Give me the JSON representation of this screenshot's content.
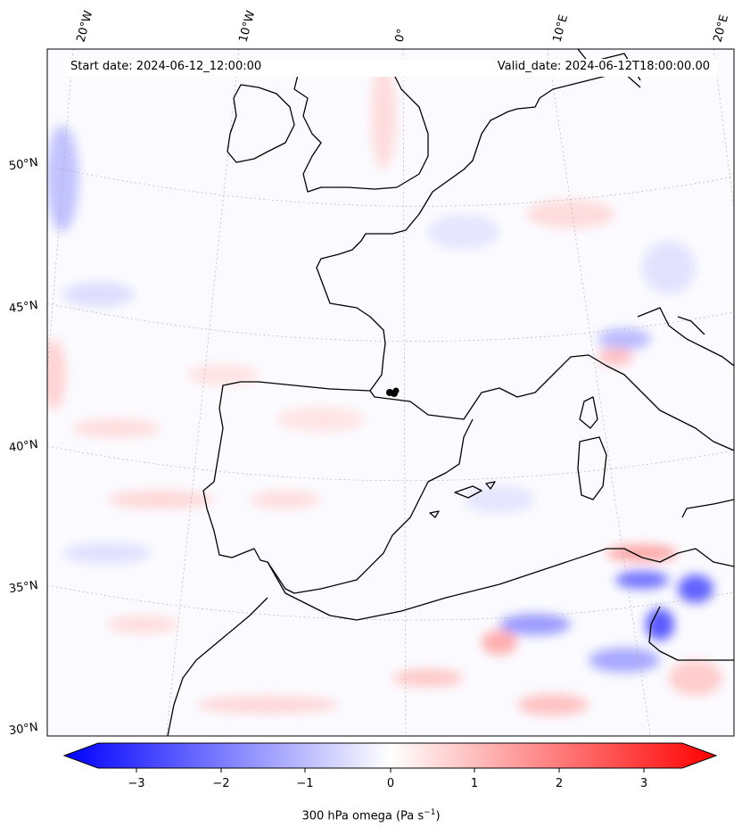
{
  "header": {
    "start_date": "Start date: 2024-06-12_12:00:00",
    "valid_date": "Valid_date: 2024-06-12T18:00:00.00"
  },
  "map": {
    "projection": "lambert-conformal",
    "longitude_labels": [
      "20°W",
      "10°W",
      "0°",
      "10°E",
      "20°E"
    ],
    "latitude_labels": [
      "50°N",
      "45°N",
      "40°N",
      "35°N",
      "30°N"
    ],
    "field": "300 hPa omega",
    "coastline_color": "#000000",
    "gridline_style": "dotted-grey",
    "marker": "black dots near 1°E 42°N"
  },
  "colorbar": {
    "label": "300 hPa omega (Pa s⁻¹)",
    "label_text": "300 hPa omega (Pa s",
    "label_sup": "−1",
    "label_end": ")",
    "ticks": [
      "−3",
      "−2",
      "−1",
      "0",
      "1",
      "2",
      "3"
    ],
    "range": [
      -3.7,
      3.7
    ],
    "colormap": "bwr",
    "colors": {
      "min": "#0000ff",
      "mid": "#ffffff",
      "max": "#ff0000"
    },
    "extend": "both"
  }
}
